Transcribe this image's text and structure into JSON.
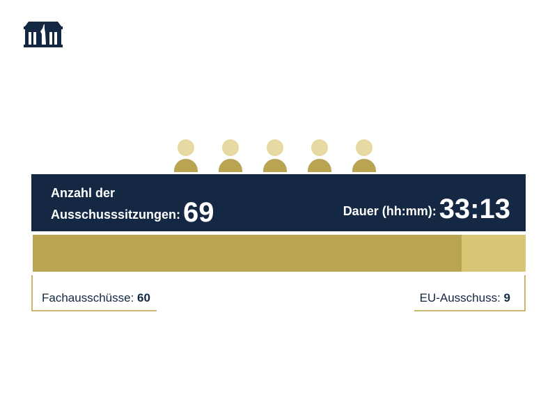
{
  "logo": {
    "icon": "parliament-building-icon"
  },
  "persons": {
    "count": 5,
    "icon": "person-icon"
  },
  "header": {
    "sessions_label_line1": "Anzahl der",
    "sessions_label_line2": "Ausschusssitzungen:",
    "sessions_value": "69",
    "duration_label": "Dauer (hh:mm):",
    "duration_value": "33:13"
  },
  "breakdown": {
    "left_label": "Fachausschüsse:",
    "left_value": "60",
    "right_label": "EU-Ausschuss:",
    "right_value": "9"
  },
  "colors": {
    "navy": "#142743",
    "gold_dark": "#b9a452",
    "gold_light": "#d8c576",
    "head": "#e8d9a3"
  },
  "chart_data": {
    "type": "bar",
    "orientation": "horizontal-stacked",
    "title": "Anzahl der Ausschusssitzungen: 69",
    "categories": [
      "Ausschusssitzungen"
    ],
    "series": [
      {
        "name": "Fachausschüsse",
        "values": [
          60
        ]
      },
      {
        "name": "EU-Ausschuss",
        "values": [
          9
        ]
      }
    ],
    "total": 69,
    "annotations": [
      "Dauer (hh:mm): 33:13"
    ]
  }
}
